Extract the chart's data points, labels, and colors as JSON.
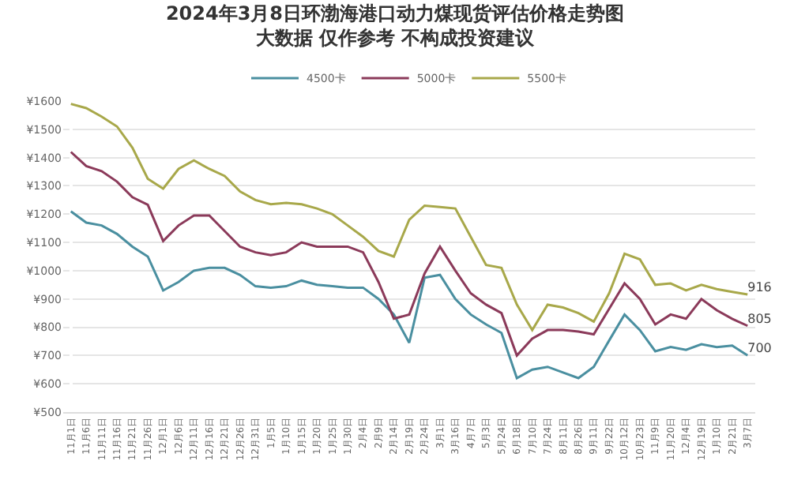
{
  "chart_data": {
    "type": "line",
    "title": "2024年3月8日环渤海港口动力煤现货评估价格走势图",
    "subtitle": "大数据 仅作参考 不构成投资建议",
    "categories": [
      "11月1日",
      "11月6日",
      "11月11日",
      "11月16日",
      "11月21日",
      "11月26日",
      "12月1日",
      "12月6日",
      "12月11日",
      "12月16日",
      "12月21日",
      "12月26日",
      "12月31日",
      "1月5日",
      "1月10日",
      "1月15日",
      "1月20日",
      "1月25日",
      "1月30日",
      "2月4日",
      "2月9日",
      "2月14日",
      "2月19日",
      "2月24日",
      "3月1日",
      "3月16日",
      "4月7日",
      "5月3日",
      "5月24日",
      "6月18日",
      "7月10日",
      "7月24日",
      "8月11日",
      "8月26日",
      "9月11日",
      "9月22日",
      "10月12日",
      "10月23日",
      "11月9日",
      "11月20日",
      "12月4日",
      "12月19日",
      "1月10日",
      "2月21日",
      "3月7日"
    ],
    "series": [
      {
        "name": "4500卡",
        "color": "#4a8fa0",
        "values": [
          1210,
          1170,
          1160,
          1130,
          1085,
          1050,
          930,
          960,
          1000,
          1010,
          1010,
          985,
          945,
          940,
          945,
          965,
          950,
          945,
          940,
          940,
          900,
          845,
          745,
          975,
          985,
          900,
          845,
          810,
          780,
          620,
          650,
          660,
          640,
          620,
          660,
          753,
          845,
          790,
          715,
          730,
          720,
          740,
          730,
          735,
          700
        ],
        "value_labels": [
          null,
          null,
          null,
          null,
          null,
          null,
          null,
          null,
          null,
          null,
          null,
          null,
          null,
          null,
          null,
          null,
          null,
          null,
          null,
          null,
          null,
          null,
          null,
          null,
          null,
          null,
          null,
          null,
          null,
          null,
          null,
          null,
          null,
          null,
          null,
          null,
          null,
          null,
          null,
          null,
          null,
          null,
          null,
          null,
          "700"
        ]
      },
      {
        "name": "5000卡",
        "color": "#8b3a5a",
        "values": [
          1420,
          1370,
          1352,
          1315,
          1260,
          1233,
          1105,
          1160,
          1195,
          1195,
          1140,
          1085,
          1065,
          1055,
          1065,
          1100,
          1085,
          1085,
          1085,
          1065,
          960,
          830,
          845,
          990,
          1085,
          1000,
          920,
          880,
          850,
          700,
          760,
          790,
          790,
          785,
          775,
          865,
          955,
          900,
          810,
          845,
          830,
          900,
          860,
          830,
          805
        ],
        "value_labels": [
          null,
          null,
          null,
          null,
          null,
          null,
          null,
          null,
          null,
          null,
          null,
          null,
          null,
          null,
          null,
          null,
          null,
          null,
          null,
          null,
          null,
          null,
          null,
          null,
          null,
          null,
          null,
          null,
          null,
          null,
          null,
          null,
          null,
          null,
          null,
          null,
          null,
          null,
          null,
          null,
          null,
          null,
          null,
          null,
          "805"
        ]
      },
      {
        "name": "5500卡",
        "color": "#a8a84a",
        "values": [
          1590,
          1575,
          1545,
          1510,
          1435,
          1325,
          1290,
          1360,
          1390,
          1360,
          1335,
          1280,
          1250,
          1235,
          1240,
          1235,
          1220,
          1200,
          1160,
          1120,
          1070,
          1050,
          1180,
          1230,
          1225,
          1220,
          1120,
          1020,
          1010,
          880,
          790,
          880,
          870,
          850,
          820,
          920,
          1060,
          1040,
          950,
          955,
          930,
          950,
          935,
          925,
          916
        ],
        "value_labels": [
          null,
          null,
          null,
          null,
          null,
          null,
          null,
          null,
          null,
          null,
          null,
          null,
          null,
          null,
          null,
          null,
          null,
          null,
          null,
          null,
          null,
          null,
          null,
          null,
          null,
          null,
          null,
          null,
          null,
          null,
          null,
          null,
          null,
          null,
          null,
          null,
          null,
          null,
          null,
          null,
          null,
          null,
          null,
          null,
          "916"
        ]
      }
    ],
    "ylim": [
      500,
      1600
    ],
    "yticks": [
      {
        "value": 500,
        "label": "¥500"
      },
      {
        "value": 600,
        "label": "¥600"
      },
      {
        "value": 700,
        "label": "¥700"
      },
      {
        "value": 800,
        "label": "¥800"
      },
      {
        "value": 900,
        "label": "¥900"
      },
      {
        "value": 1000,
        "label": "¥1000"
      },
      {
        "value": 1100,
        "label": "¥1100"
      },
      {
        "value": 1200,
        "label": "¥1200"
      },
      {
        "value": 1300,
        "label": "¥1300"
      },
      {
        "value": 1400,
        "label": "¥1400"
      },
      {
        "value": 1500,
        "label": "¥1500"
      },
      {
        "value": 1600,
        "label": "¥1600"
      }
    ],
    "grid": "y",
    "legend": "top",
    "marker": "none",
    "line_style": "solid"
  }
}
